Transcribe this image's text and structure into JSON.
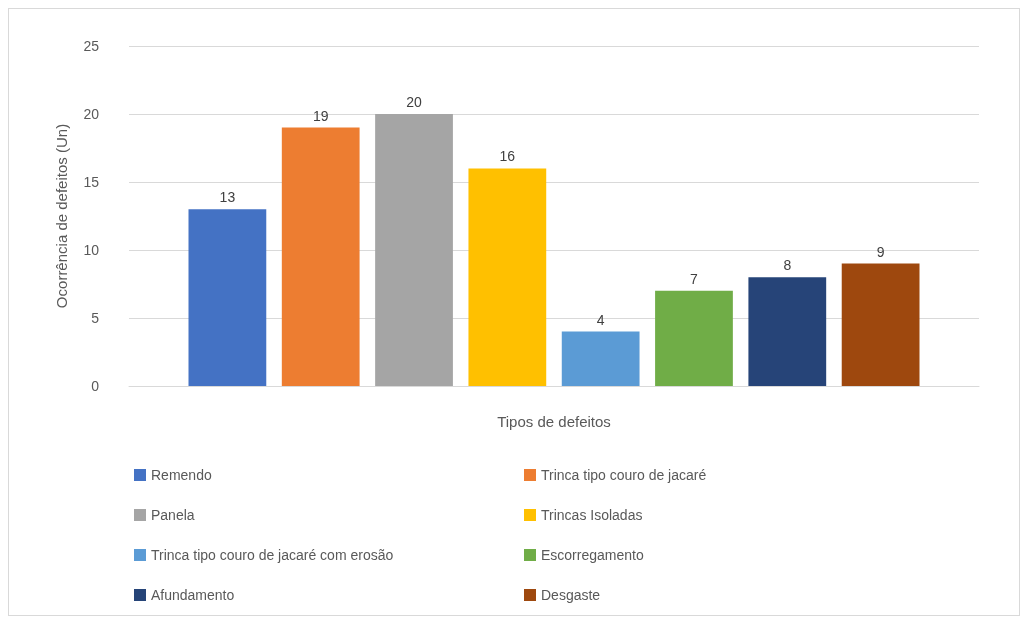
{
  "chart_data": {
    "type": "bar",
    "xlabel": "Tipos de defeitos",
    "ylabel": "Ocorrência de defeitos (Un)",
    "categories": [
      null
    ],
    "series": [
      {
        "name": "Remendo",
        "color": "#4472c4",
        "values": [
          13
        ]
      },
      {
        "name": "Trinca tipo couro de jacaré",
        "color": "#ed7d31",
        "values": [
          19
        ]
      },
      {
        "name": "Panela",
        "color": "#a5a5a5",
        "values": [
          20
        ]
      },
      {
        "name": "Trincas Isoladas",
        "color": "#ffc000",
        "values": [
          16
        ]
      },
      {
        "name": "Trinca tipo couro de jacaré com erosão",
        "color": "#5b9bd5",
        "values": [
          4
        ]
      },
      {
        "name": "Escorregamento",
        "color": "#70ad47",
        "values": [
          7
        ]
      },
      {
        "name": "Afundamento",
        "color": "#264478",
        "values": [
          8
        ]
      },
      {
        "name": "Desgaste",
        "color": "#9e480e",
        "values": [
          9
        ]
      }
    ],
    "ylim": [
      0,
      25
    ],
    "yticks": [
      0,
      5,
      10,
      15,
      20,
      25
    ],
    "grid": "y",
    "data_labels": true,
    "legend": "bottom"
  }
}
